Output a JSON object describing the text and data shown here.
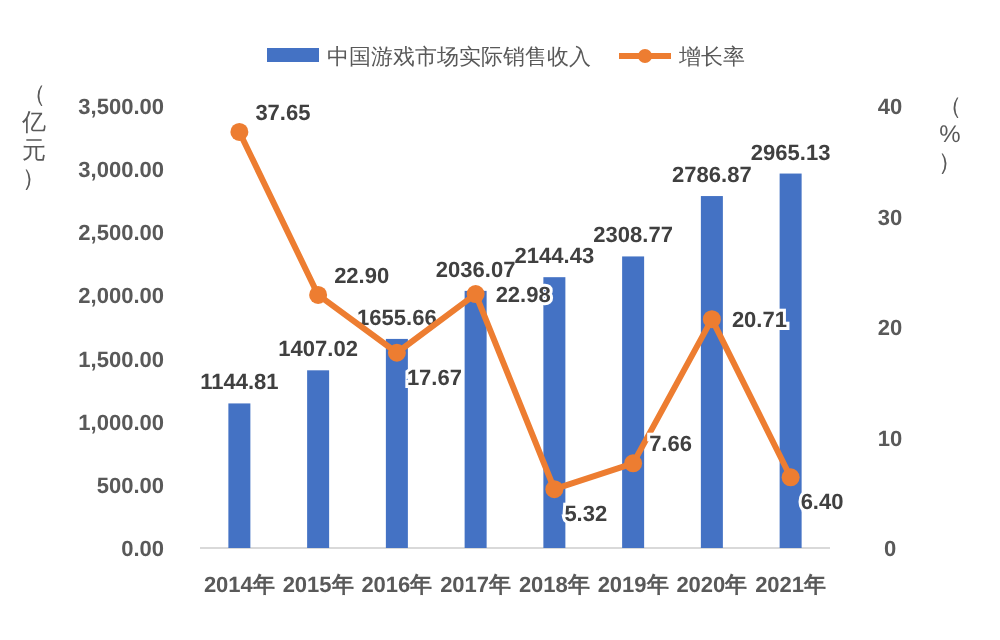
{
  "chart_data": {
    "type": "bar",
    "categories": [
      "2014年",
      "2015年",
      "2016年",
      "2017年",
      "2018年",
      "2019年",
      "2020年",
      "2021年"
    ],
    "series": [
      {
        "name": "中国游戏市场实际销售收入",
        "type": "bar",
        "color": "#4472c4",
        "values": [
          1144.81,
          1407.02,
          1655.66,
          2036.07,
          2144.43,
          2308.77,
          2786.87,
          2965.13
        ]
      },
      {
        "name": "增长率",
        "type": "line",
        "axis": "y2",
        "color": "#ed7d31",
        "marker": "circle",
        "values": [
          37.65,
          22.9,
          17.67,
          22.98,
          5.32,
          7.66,
          20.71,
          6.4
        ],
        "value_labels": [
          "37.65",
          "22.90",
          "17.67",
          "22.98",
          "5.32",
          "7.66",
          "20.71",
          "6.40"
        ]
      }
    ],
    "ylabel": "（亿元）",
    "y2label": "（%）",
    "ylim": [
      0,
      3500
    ],
    "yticks": [
      {
        "value": 0,
        "label": "0.00"
      },
      {
        "value": 500,
        "label": "500.00"
      },
      {
        "value": 1000,
        "label": "1,000.00"
      },
      {
        "value": 1500,
        "label": "1,500.00"
      },
      {
        "value": 2000,
        "label": "2,000.00"
      },
      {
        "value": 2500,
        "label": "2,500.00"
      },
      {
        "value": 3000,
        "label": "3,000.00"
      },
      {
        "value": 3500,
        "label": "3,500.00"
      }
    ],
    "y2lim": [
      0,
      40
    ],
    "y2ticks": [
      0,
      10,
      20,
      30,
      40
    ],
    "data_labels": true,
    "legend": "top"
  }
}
